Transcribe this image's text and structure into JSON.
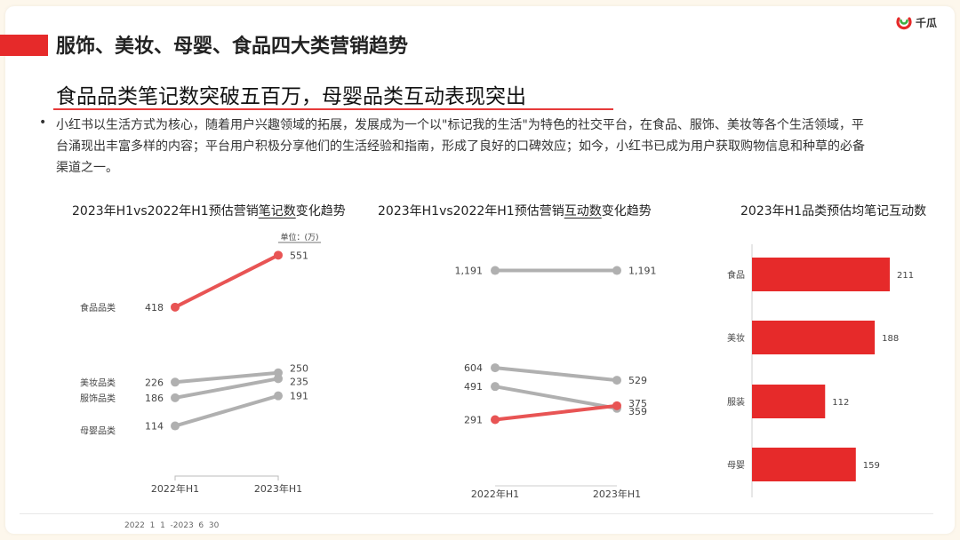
{
  "header": {
    "title": "服饰、美妆、母婴、食品四大类营销趋势",
    "logo_text": "千瓜",
    "subtitle": "食品品类笔记数突破五百万，母婴品类互动表现突出",
    "paragraph": "小红书以生活方式为核心，随着用户兴趣领域的拓展，发展成为一个以\"标记我的生活\"为特色的社交平台，在食品、服饰、美妆等各个生活领域，平台涌现出丰富多样的内容；平台用户积极分享他们的生活经验和指南，形成了良好的口碑效应；如今，小红书已成为用户获取购物信息和种草的必备渠道之一。"
  },
  "colors": {
    "accent": "#e62a2a",
    "line_red": "#e85454",
    "line_gray": "#b0b0b0",
    "bar_red": "#e62a2a"
  },
  "chart_data": [
    {
      "type": "line",
      "title_pre": "2023年H1vs2022年H1预估营销",
      "title_em": "笔记数",
      "title_post": "变化趋势",
      "unit": "单位：(万)",
      "categories": [
        "2022年H1",
        "2023年H1"
      ],
      "series": [
        {
          "name": "食品品类",
          "values": [
            418,
            551
          ],
          "highlight": true
        },
        {
          "name": "美妆品类",
          "values": [
            226,
            250
          ],
          "highlight": false
        },
        {
          "name": "服饰品类",
          "values": [
            186,
            235
          ],
          "highlight": false
        },
        {
          "name": "母婴品类",
          "values": [
            114,
            191
          ],
          "highlight": false
        }
      ]
    },
    {
      "type": "line",
      "title_pre": "2023年H1vs2022年H1预估营销",
      "title_em": "互动数",
      "title_post": "变化趋势",
      "categories": [
        "2022年H1",
        "2023年H1"
      ],
      "series": [
        {
          "values": [
            1191,
            1191
          ],
          "labels": [
            "1,191",
            "1,191"
          ],
          "highlight": false
        },
        {
          "values": [
            604,
            529
          ],
          "labels": [
            "604",
            "529"
          ],
          "highlight": false
        },
        {
          "values": [
            491,
            359
          ],
          "labels": [
            "491",
            "359"
          ],
          "highlight": false
        },
        {
          "values": [
            291,
            375
          ],
          "labels": [
            "291",
            "375"
          ],
          "highlight": true
        }
      ]
    },
    {
      "type": "bar",
      "title": "2023年H1品类预估均笔记互动数",
      "categories": [
        "食品",
        "美妆",
        "服装",
        "母婴"
      ],
      "values": [
        211,
        188,
        112,
        159
      ]
    }
  ],
  "footer": {
    "note": "2022  1  1  -2023  6  30"
  }
}
